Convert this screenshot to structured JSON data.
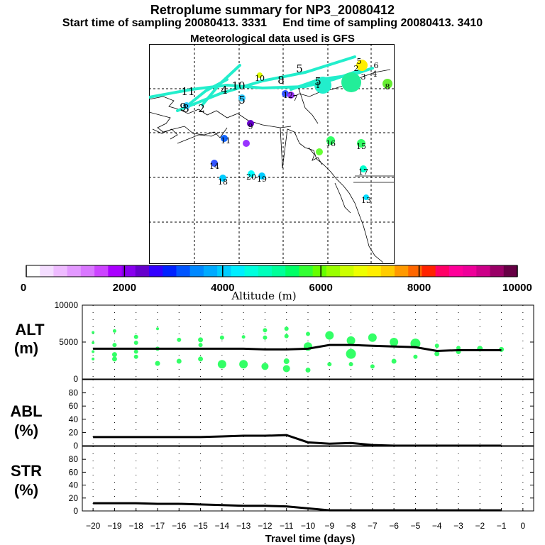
{
  "header": {
    "title": "Retroplume summary for NP3_20080412",
    "subtitle_start": "Start time of sampling 20080413.  3331",
    "subtitle_end": "End time of sampling 20080413.  3410",
    "met": "Meteorological data used is GFS"
  },
  "colors": {
    "alt_line": "#000000",
    "point_green": "#33ff66",
    "plume_cyan": "#22eecc"
  },
  "map": {
    "labels": [
      {
        "t": "1",
        "c": "#22ddcc"
      },
      {
        "t": "2",
        "c": "#22ddcc"
      },
      {
        "t": "3",
        "c": "#22ddcc"
      },
      {
        "t": "4",
        "c": "#22ddcc"
      },
      {
        "t": "5",
        "c": "#22ddcc"
      },
      {
        "t": "6",
        "c": "#ffdd00"
      },
      {
        "t": "7",
        "c": "#9933ff"
      },
      {
        "t": "8",
        "c": "#66ff33"
      },
      {
        "t": "9",
        "c": "#6600cc"
      },
      {
        "t": "10",
        "c": "#ddff00"
      },
      {
        "t": "11",
        "c": "#22ddcc"
      },
      {
        "t": "12",
        "c": "#1166ff"
      },
      {
        "t": "13",
        "c": "#00ddff"
      },
      {
        "t": "14",
        "c": "#3355ff"
      },
      {
        "t": "15",
        "c": "#33ff66"
      },
      {
        "t": "16",
        "c": "#33ff66"
      },
      {
        "t": "17",
        "c": "#00ffcc"
      },
      {
        "t": "18",
        "c": "#00ccff"
      },
      {
        "t": "19",
        "c": "#00ccff"
      },
      {
        "t": "20",
        "c": "#00ffff"
      },
      {
        "t": "4",
        "c": "#22ddcc"
      },
      {
        "t": "5",
        "c": "#22ddcc"
      },
      {
        "t": "3",
        "c": "#22ddcc"
      },
      {
        "t": "2",
        "c": "#22ddcc"
      },
      {
        "t": "11",
        "c": "#9933ff"
      },
      {
        "t": "5",
        "c": "#33ccff"
      },
      {
        "t": "10",
        "c": "#22ddcc"
      },
      {
        "t": "8",
        "c": "#22ddcc"
      },
      {
        "t": "5",
        "c": "#66ff33"
      },
      {
        "t": "9",
        "c": "#22ddcc"
      }
    ]
  },
  "colorbar": {
    "colors": [
      "#ffffff",
      "#f4ddff",
      "#eebbff",
      "#e399ff",
      "#d977ff",
      "#cc44ff",
      "#aa00ff",
      "#8800ee",
      "#6600cc",
      "#3300ff",
      "#0022ff",
      "#0055ff",
      "#0088ff",
      "#00aaff",
      "#00ccff",
      "#00eeff",
      "#00ffdd",
      "#00ffbb",
      "#00ff99",
      "#00ff66",
      "#33ff33",
      "#66ff00",
      "#99ff00",
      "#ccff00",
      "#eeff00",
      "#ffee00",
      "#ffcc00",
      "#ff9900",
      "#ff6600",
      "#ff2200",
      "#ff0066",
      "#ff0099",
      "#ee0099",
      "#cc0088",
      "#990066",
      "#660044"
    ],
    "tick_labels": [
      "0",
      "2000",
      "4000",
      "6000",
      "8000",
      "10000"
    ],
    "xlabel": "Altitude (m)"
  },
  "chart_data": [
    {
      "type": "line",
      "panel": "ALT",
      "title": "ALT",
      "ylabel": "(m)",
      "x": [
        -20,
        -19,
        -18,
        -17,
        -16,
        -15,
        -14,
        -13,
        -12,
        -11,
        -10,
        -9,
        -8,
        -7,
        -6,
        -5,
        -4,
        -3,
        -2,
        -1
      ],
      "values": [
        4100,
        4100,
        4100,
        4100,
        4100,
        4100,
        4100,
        4100,
        4000,
        4000,
        4100,
        4600,
        4600,
        4500,
        4400,
        4300,
        3800,
        3900,
        3900,
        3900
      ],
      "scatter": [
        {
          "x": -20,
          "y": 6300,
          "r": 2
        },
        {
          "x": -20,
          "y": 4900,
          "r": 2
        },
        {
          "x": -20,
          "y": 3700,
          "r": 2
        },
        {
          "x": -20,
          "y": 2700,
          "r": 2
        },
        {
          "x": -19,
          "y": 6500,
          "r": 2.5
        },
        {
          "x": -19,
          "y": 4600,
          "r": 3
        },
        {
          "x": -19,
          "y": 3300,
          "r": 3.5
        },
        {
          "x": -19,
          "y": 2700,
          "r": 3.5
        },
        {
          "x": -18,
          "y": 5700,
          "r": 3
        },
        {
          "x": -18,
          "y": 4900,
          "r": 3
        },
        {
          "x": -18,
          "y": 3700,
          "r": 3
        },
        {
          "x": -18,
          "y": 3000,
          "r": 3
        },
        {
          "x": -17,
          "y": 6800,
          "r": 2
        },
        {
          "x": -17,
          "y": 4100,
          "r": 3
        },
        {
          "x": -17,
          "y": 2100,
          "r": 3.5
        },
        {
          "x": -16,
          "y": 5300,
          "r": 3
        },
        {
          "x": -16,
          "y": 2400,
          "r": 3.5
        },
        {
          "x": -15,
          "y": 5300,
          "r": 3.5
        },
        {
          "x": -15,
          "y": 4600,
          "r": 3
        },
        {
          "x": -15,
          "y": 2700,
          "r": 3.5
        },
        {
          "x": -14,
          "y": 5600,
          "r": 3
        },
        {
          "x": -14,
          "y": 2000,
          "r": 6
        },
        {
          "x": -13,
          "y": 5700,
          "r": 2.5
        },
        {
          "x": -13,
          "y": 2000,
          "r": 6
        },
        {
          "x": -12,
          "y": 6600,
          "r": 3
        },
        {
          "x": -12,
          "y": 5600,
          "r": 3
        },
        {
          "x": -12,
          "y": 1700,
          "r": 5
        },
        {
          "x": -11,
          "y": 6800,
          "r": 3
        },
        {
          "x": -11,
          "y": 5800,
          "r": 3
        },
        {
          "x": -11,
          "y": 2400,
          "r": 4
        },
        {
          "x": -11,
          "y": 1400,
          "r": 5
        },
        {
          "x": -10,
          "y": 6100,
          "r": 3
        },
        {
          "x": -10,
          "y": 4400,
          "r": 6
        },
        {
          "x": -10,
          "y": 1200,
          "r": 3.5
        },
        {
          "x": -9,
          "y": 5900,
          "r": 6
        },
        {
          "x": -9,
          "y": 2000,
          "r": 3
        },
        {
          "x": -8,
          "y": 5200,
          "r": 6
        },
        {
          "x": -8,
          "y": 3400,
          "r": 7
        },
        {
          "x": -8,
          "y": 2000,
          "r": 3
        },
        {
          "x": -7,
          "y": 5600,
          "r": 6
        },
        {
          "x": -7,
          "y": 1700,
          "r": 3
        },
        {
          "x": -6,
          "y": 5000,
          "r": 6
        },
        {
          "x": -6,
          "y": 2400,
          "r": 3.5
        },
        {
          "x": -5,
          "y": 4800,
          "r": 7
        },
        {
          "x": -5,
          "y": 3000,
          "r": 3
        },
        {
          "x": -4,
          "y": 4500,
          "r": 3
        },
        {
          "x": -4,
          "y": 3400,
          "r": 3.5
        },
        {
          "x": -3,
          "y": 4200,
          "r": 3
        },
        {
          "x": -3,
          "y": 3700,
          "r": 3.5
        },
        {
          "x": -2,
          "y": 4100,
          "r": 4
        },
        {
          "x": -1,
          "y": 4000,
          "r": 3.5
        }
      ],
      "ylim": [
        0,
        10000
      ],
      "yticks": [
        "10000",
        "5000",
        "0"
      ]
    },
    {
      "type": "line",
      "panel": "ABL",
      "title": "ABL",
      "ylabel": "(%)",
      "x": [
        -20,
        -19,
        -18,
        -17,
        -16,
        -15,
        -14,
        -13,
        -12,
        -11,
        -10,
        -9,
        -8,
        -7,
        -6,
        -5,
        -4,
        -3,
        -2,
        -1
      ],
      "values": [
        13,
        13,
        13,
        13,
        13,
        13,
        14,
        15,
        15,
        16,
        5,
        3,
        4,
        1,
        0,
        0,
        0,
        0,
        0,
        0
      ],
      "ylim": [
        0,
        100
      ],
      "yticks": [
        "80",
        "60",
        "40",
        "20",
        "0"
      ]
    },
    {
      "type": "line",
      "panel": "STR",
      "title": "STR",
      "ylabel": "(%)",
      "x": [
        -20,
        -19,
        -18,
        -17,
        -16,
        -15,
        -14,
        -13,
        -12,
        -11,
        -10,
        -9,
        -8,
        -7,
        -6,
        -5,
        -4,
        -3,
        -2,
        -1
      ],
      "values": [
        12,
        12,
        12,
        11,
        11,
        10,
        9,
        8,
        8,
        7,
        4,
        1,
        1,
        1,
        1,
        1,
        1,
        1,
        1,
        1
      ],
      "ylim": [
        0,
        100
      ],
      "yticks": [
        "80",
        "60",
        "40",
        "20",
        "0"
      ]
    }
  ],
  "xaxis": {
    "tick_labels": [
      "−20",
      "−19",
      "−18",
      "−17",
      "−16",
      "−15",
      "−14",
      "−13",
      "−12",
      "−11",
      "−10",
      "−9",
      "−8",
      "−7",
      "−6",
      "−5",
      "−4",
      "−3",
      "−2",
      "−1",
      "0"
    ],
    "xlabel": "Travel time (days)"
  }
}
